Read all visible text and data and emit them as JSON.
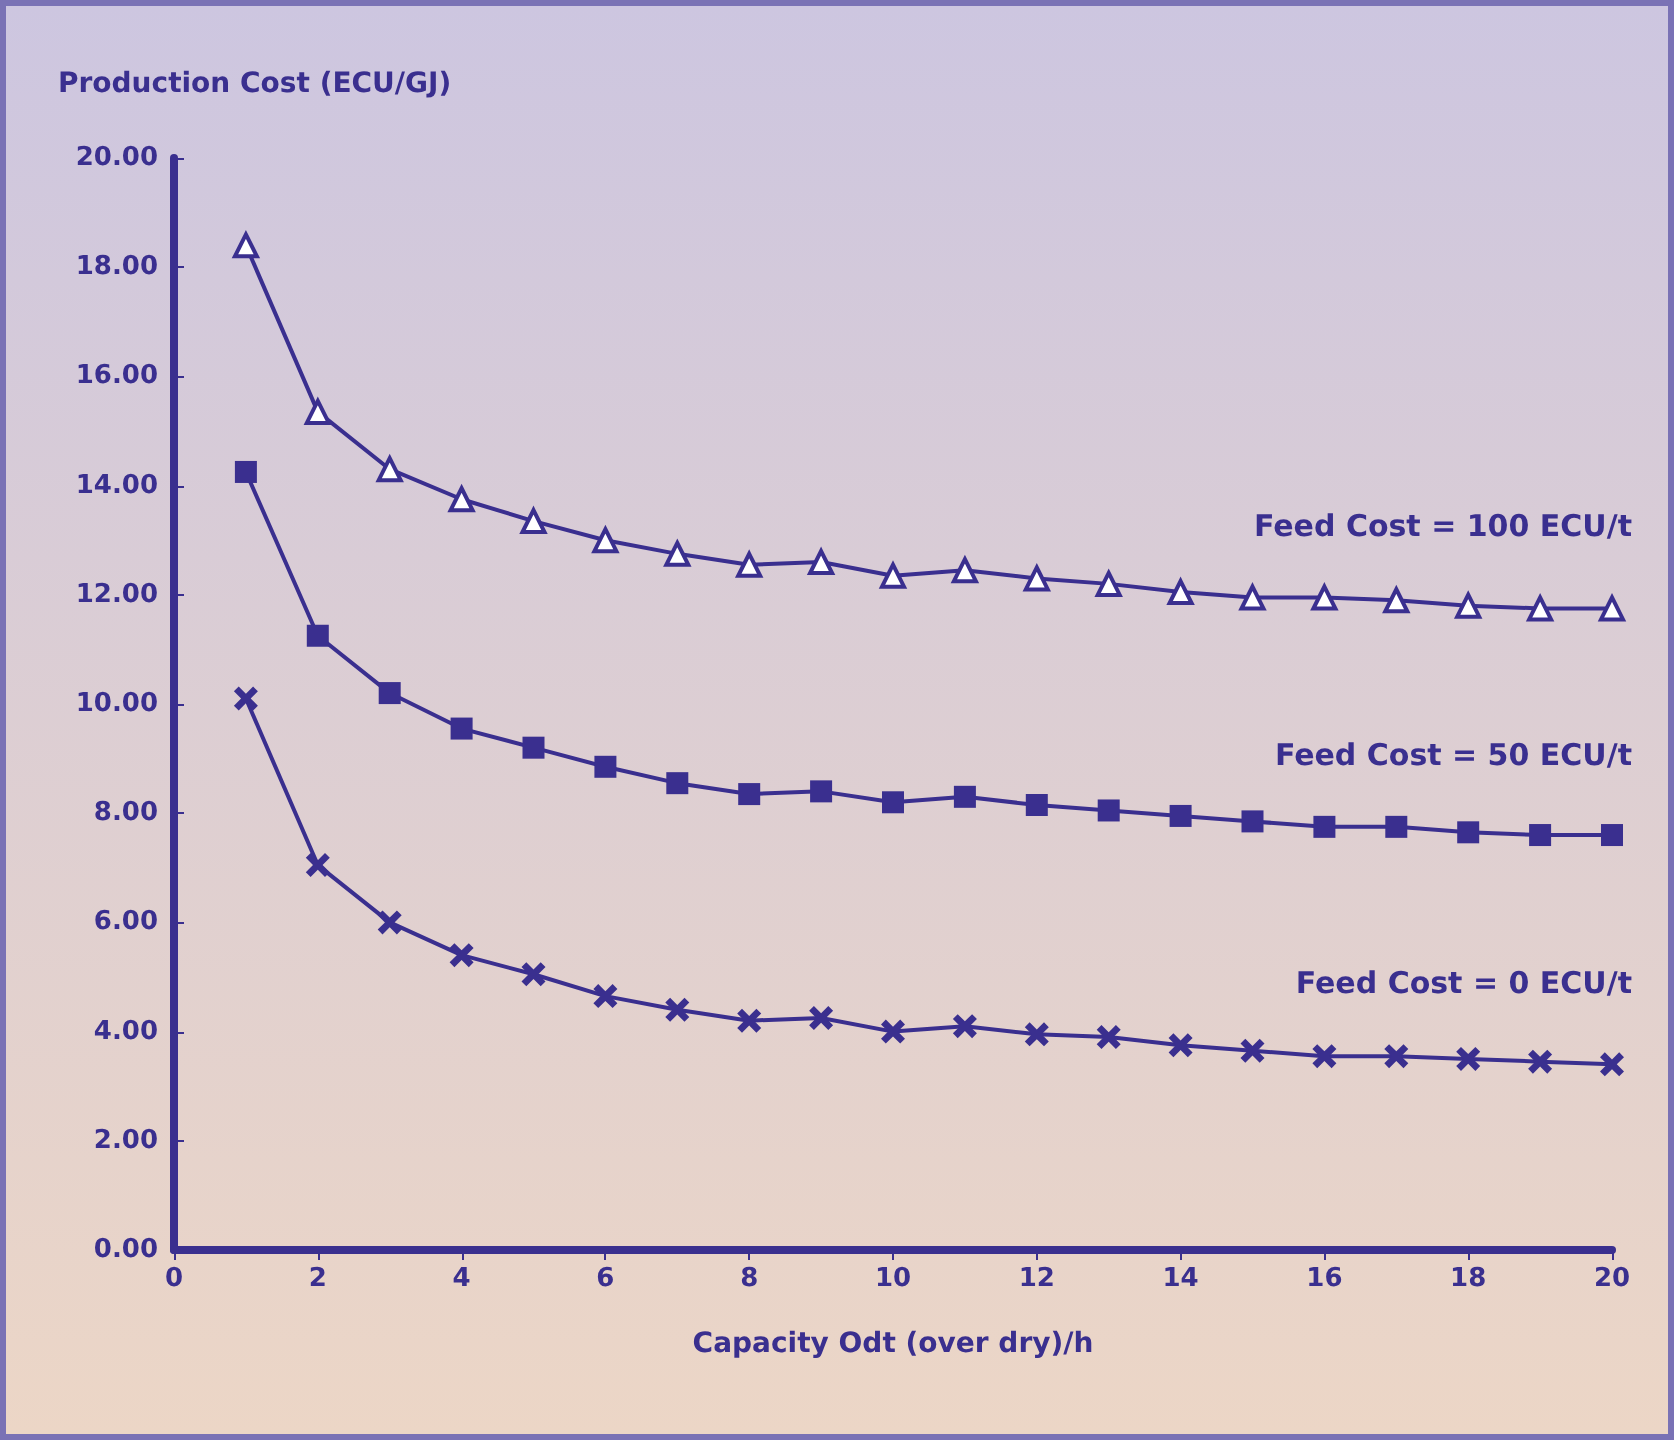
{
  "chart_data": {
    "type": "line",
    "xlabel": "Capacity Odt (over dry)/h",
    "ylabel": "Production Cost (ECU/GJ)",
    "x": [
      1,
      2,
      3,
      4,
      5,
      6,
      7,
      8,
      9,
      10,
      11,
      12,
      13,
      14,
      15,
      16,
      17,
      18,
      19,
      20
    ],
    "series": [
      {
        "name": "Feed Cost = 100 ECU/t",
        "color": "#3a2f8f",
        "marker": "triangle",
        "values": [
          18.4,
          15.35,
          14.3,
          13.75,
          13.35,
          13.0,
          12.75,
          12.55,
          12.6,
          12.35,
          12.45,
          12.3,
          12.2,
          12.05,
          11.95,
          11.95,
          11.9,
          11.8,
          11.75,
          11.75
        ]
      },
      {
        "name": "Feed Cost = 50 ECU/t",
        "color": "#3a2f8f",
        "marker": "square",
        "values": [
          14.25,
          11.25,
          10.2,
          9.55,
          9.2,
          8.85,
          8.55,
          8.35,
          8.4,
          8.2,
          8.3,
          8.15,
          8.05,
          7.95,
          7.85,
          7.75,
          7.75,
          7.65,
          7.6,
          7.6
        ]
      },
      {
        "name": "Feed Cost = 0 ECU/t",
        "color": "#3a2f8f",
        "marker": "cross",
        "values": [
          10.1,
          7.05,
          6.0,
          5.4,
          5.05,
          4.65,
          4.4,
          4.2,
          4.25,
          4.0,
          4.1,
          3.95,
          3.9,
          3.75,
          3.65,
          3.55,
          3.55,
          3.5,
          3.45,
          3.4
        ]
      }
    ],
    "xlim": [
      0,
      20
    ],
    "xticks": [
      0,
      2,
      4,
      6,
      8,
      10,
      12,
      14,
      16,
      18,
      20
    ],
    "ylim": [
      0,
      20
    ],
    "yticks": [
      {
        "value": 0,
        "label": "0.00"
      },
      {
        "value": 2,
        "label": "2.00"
      },
      {
        "value": 4,
        "label": "4.00"
      },
      {
        "value": 6,
        "label": "6.00"
      },
      {
        "value": 8,
        "label": "8.00"
      },
      {
        "value": 10,
        "label": "10.00"
      },
      {
        "value": 12,
        "label": "12.00"
      },
      {
        "value": 14,
        "label": "14.00"
      },
      {
        "value": 16,
        "label": "16.00"
      },
      {
        "value": 18,
        "label": "18.00"
      },
      {
        "value": 20,
        "label": "20.00"
      }
    ],
    "grid": false,
    "legend": false
  }
}
